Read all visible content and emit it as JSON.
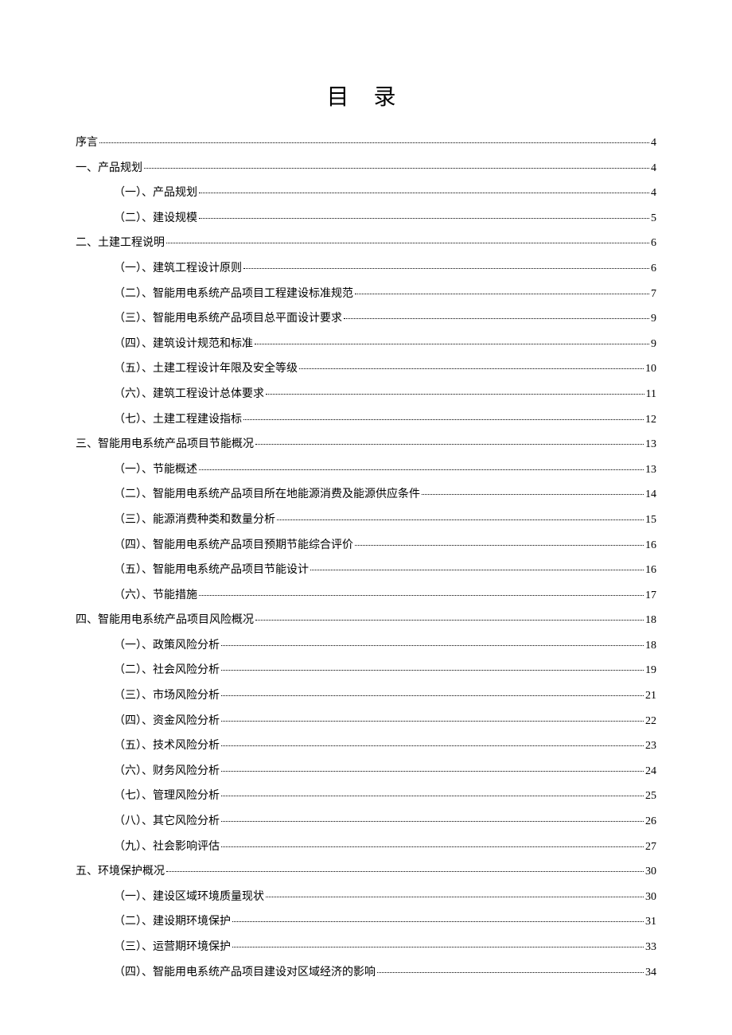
{
  "title": "目 录",
  "entries": [
    {
      "level": 1,
      "label": "序言",
      "page": "4"
    },
    {
      "level": 1,
      "label": "一、产品规划",
      "page": "4"
    },
    {
      "level": 2,
      "label": "（一）、产品规划",
      "page": "4"
    },
    {
      "level": 2,
      "label": "（二）、建设规模",
      "page": "5"
    },
    {
      "level": 1,
      "label": "二、土建工程说明",
      "page": "6"
    },
    {
      "level": 2,
      "label": "（一）、建筑工程设计原则",
      "page": "6"
    },
    {
      "level": 2,
      "label": "（二）、智能用电系统产品项目工程建设标准规范",
      "page": "7"
    },
    {
      "level": 2,
      "label": "（三）、智能用电系统产品项目总平面设计要求",
      "page": "9"
    },
    {
      "level": 2,
      "label": "（四）、建筑设计规范和标准",
      "page": "9"
    },
    {
      "level": 2,
      "label": "（五）、土建工程设计年限及安全等级",
      "page": "10"
    },
    {
      "level": 2,
      "label": "（六）、建筑工程设计总体要求",
      "page": "11"
    },
    {
      "level": 2,
      "label": "（七）、土建工程建设指标",
      "page": "12"
    },
    {
      "level": 1,
      "label": "三、智能用电系统产品项目节能概况",
      "page": "13"
    },
    {
      "level": 2,
      "label": "（一）、节能概述",
      "page": "13"
    },
    {
      "level": 2,
      "label": "（二）、智能用电系统产品项目所在地能源消费及能源供应条件",
      "page": "14"
    },
    {
      "level": 2,
      "label": "（三）、能源消费种类和数量分析",
      "page": "15"
    },
    {
      "level": 2,
      "label": "（四）、智能用电系统产品项目预期节能综合评价",
      "page": "16"
    },
    {
      "level": 2,
      "label": "（五）、智能用电系统产品项目节能设计",
      "page": "16"
    },
    {
      "level": 2,
      "label": "（六）、节能措施",
      "page": "17"
    },
    {
      "level": 1,
      "label": "四、智能用电系统产品项目风险概况",
      "page": "18"
    },
    {
      "level": 2,
      "label": "（一）、政策风险分析",
      "page": "18"
    },
    {
      "level": 2,
      "label": "（二）、社会风险分析",
      "page": "19"
    },
    {
      "level": 2,
      "label": "（三）、市场风险分析",
      "page": "21"
    },
    {
      "level": 2,
      "label": "（四）、资金风险分析",
      "page": "22"
    },
    {
      "level": 2,
      "label": "（五）、技术风险分析",
      "page": "23"
    },
    {
      "level": 2,
      "label": "（六）、财务风险分析",
      "page": "24"
    },
    {
      "level": 2,
      "label": "（七）、管理风险分析",
      "page": "25"
    },
    {
      "level": 2,
      "label": "（八）、其它风险分析",
      "page": "26"
    },
    {
      "level": 2,
      "label": "（九）、社会影响评估",
      "page": "27"
    },
    {
      "level": 1,
      "label": "五、环境保护概况",
      "page": "30"
    },
    {
      "level": 2,
      "label": "（一）、建设区域环境质量现状",
      "page": "30"
    },
    {
      "level": 2,
      "label": "（二）、建设期环境保护",
      "page": "31"
    },
    {
      "level": 2,
      "label": "（三）、运营期环境保护",
      "page": "33"
    },
    {
      "level": 2,
      "label": "（四）、智能用电系统产品项目建设对区域经济的影响",
      "page": "34"
    }
  ]
}
